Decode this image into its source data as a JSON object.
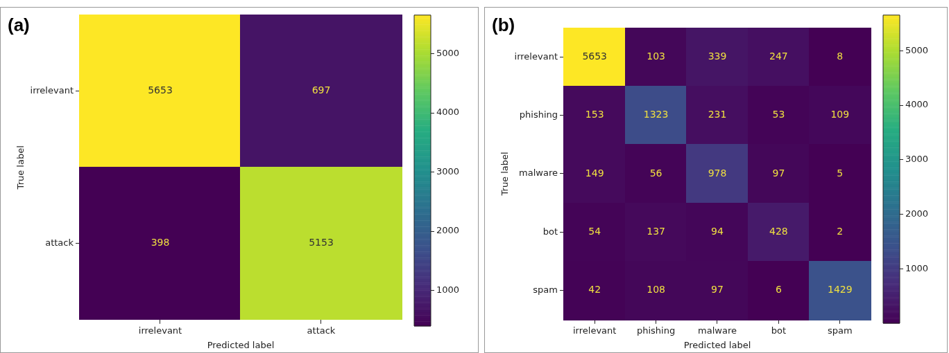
{
  "chart_data": [
    {
      "type": "heatmap",
      "title": "(a)",
      "xlabel": "Predicted label",
      "ylabel": "True label",
      "categories": [
        "irrelevant",
        "attack"
      ],
      "y_categories": [
        "irrelevant",
        "attack"
      ],
      "cells": [
        [
          5653,
          697
        ],
        [
          398,
          5153
        ]
      ],
      "clim": [
        398,
        5653
      ],
      "cticks": [
        1000,
        2000,
        3000,
        4000,
        5000
      ],
      "data_labels": true
    },
    {
      "type": "heatmap",
      "title": "(b)",
      "xlabel": "Predicted label",
      "ylabel": "True label",
      "categories": [
        "irrelevant",
        "phishing",
        "malware",
        "bot",
        "spam"
      ],
      "y_categories": [
        "irrelevant",
        "phishing",
        "malware",
        "bot",
        "spam"
      ],
      "cells": [
        [
          5653,
          103,
          339,
          247,
          8
        ],
        [
          153,
          1323,
          231,
          53,
          109
        ],
        [
          149,
          56,
          978,
          97,
          5
        ],
        [
          54,
          137,
          94,
          428,
          2
        ],
        [
          42,
          108,
          97,
          6,
          1429
        ]
      ],
      "clim": [
        2,
        5653
      ],
      "cticks": [
        1000,
        2000,
        3000,
        4000,
        5000
      ],
      "data_labels": true
    }
  ]
}
